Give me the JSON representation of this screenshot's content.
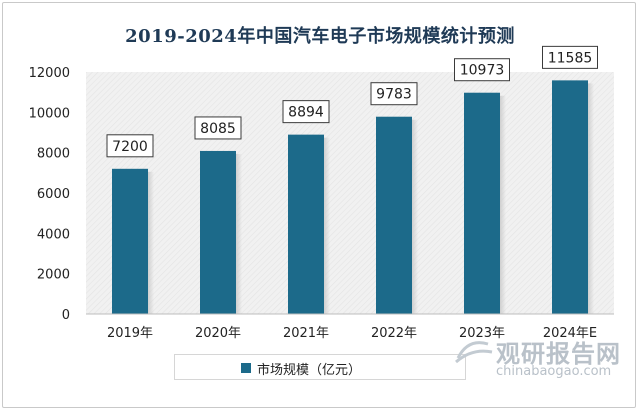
{
  "chart_data": {
    "type": "bar",
    "title": "2019-2024年中国汽车电子市场规模统计预测",
    "categories": [
      "2019年",
      "2020年",
      "2021年",
      "2022年",
      "2023年",
      "2024年E"
    ],
    "series": [
      {
        "name": "市场规模（亿元）",
        "values": [
          7200,
          8085,
          8894,
          9783,
          10973,
          11585
        ]
      }
    ],
    "ylim": [
      0,
      12000
    ],
    "yticks": [
      0,
      2000,
      4000,
      6000,
      8000,
      10000,
      12000
    ],
    "data_labels": true,
    "grid": false,
    "legend": "bottom",
    "bar_color": "#1c6a8a",
    "plot_background": "hatched-light-gray"
  },
  "watermark": {
    "name_cn": "观研报告网",
    "url": "chinabaogao.com"
  },
  "colors": {
    "title": "#1f3a56",
    "bar": "#1c6a8a"
  }
}
